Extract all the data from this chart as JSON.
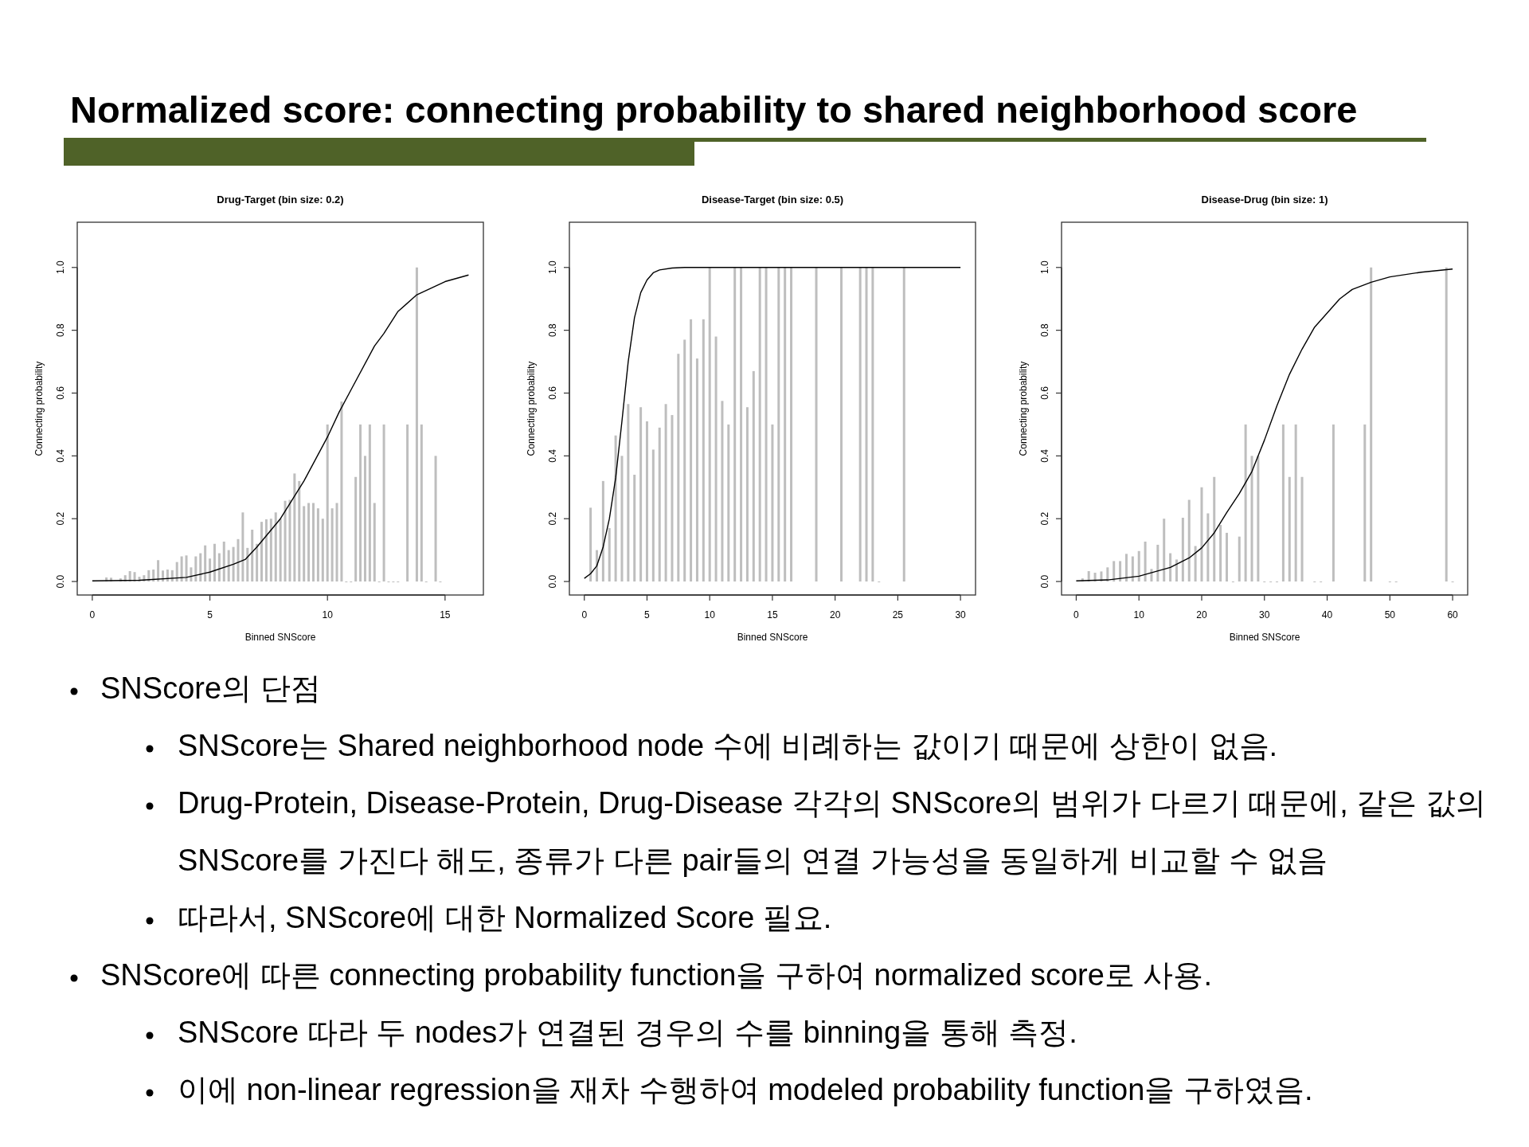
{
  "chart_data": [
    {
      "type": "other",
      "title": "Normalized score: connecting probability to shared neighborhood score"
    },
    {
      "type": "bar",
      "title": "Drug-Target (bin size: 0.2)",
      "xlabel": "Binned SNScore",
      "ylabel": "Connecting probability",
      "xlim": [
        -0.64,
        16.63
      ],
      "ylim": [
        -0.043,
        1.144
      ],
      "xticks": [
        0,
        5,
        10,
        15
      ],
      "yticks": [
        {
          "value": 0,
          "label": "0.0"
        },
        {
          "value": 0.2,
          "label": "0.2"
        },
        {
          "value": 0.4,
          "label": "0.4"
        },
        {
          "value": 0.6,
          "label": "0.6"
        },
        {
          "value": 0.8,
          "label": "0.8"
        },
        {
          "value": 1,
          "label": "1.0"
        }
      ],
      "series": [
        {
          "type": "bar",
          "color": "#bebebe",
          "x": [
            0.6,
            0.8,
            1.2,
            1.4,
            1.6,
            1.8,
            2.0,
            2.2,
            2.4,
            2.6,
            2.8,
            3.0,
            3.2,
            3.4,
            3.6,
            3.8,
            4.0,
            4.2,
            4.4,
            4.6,
            4.8,
            5.0,
            5.2,
            5.4,
            5.6,
            5.8,
            6.0,
            6.2,
            6.4,
            6.6,
            6.8,
            7.0,
            7.2,
            7.4,
            7.6,
            7.8,
            8.0,
            8.2,
            8.4,
            8.6,
            8.8,
            9.0,
            9.2,
            9.4,
            9.6,
            9.8,
            10.0,
            10.2,
            10.4,
            10.6,
            10.8,
            11.0,
            11.2,
            11.4,
            11.6,
            11.8,
            12.0,
            12.2,
            12.4,
            12.6,
            12.8,
            13.0,
            13.4,
            13.8,
            14.0,
            14.2,
            14.6,
            14.8
          ],
          "values": [
            0.013,
            0.012,
            0.01,
            0.02,
            0.033,
            0.03,
            0.015,
            0.02,
            0.036,
            0.038,
            0.068,
            0.035,
            0.038,
            0.036,
            0.062,
            0.08,
            0.083,
            0.045,
            0.08,
            0.09,
            0.115,
            0.073,
            0.12,
            0.09,
            0.127,
            0.1,
            0.11,
            0.135,
            0.22,
            0.107,
            0.165,
            0.12,
            0.19,
            0.198,
            0.2,
            0.22,
            0.2,
            0.257,
            0.26,
            0.344,
            0.32,
            0.24,
            0.25,
            0.25,
            0.233,
            0.2,
            0.5,
            0.233,
            0.25,
            0.573,
            0,
            0,
            0.333,
            0.5,
            0.4,
            0.5,
            0.25,
            0,
            0.5,
            0,
            0,
            0,
            0.5,
            1.0,
            0.5,
            0,
            0.4,
            0
          ]
        },
        {
          "type": "line",
          "color": "#000000",
          "x": [
            0,
            2,
            4,
            5,
            6,
            6.5,
            7,
            8,
            9,
            10,
            10.5,
            11,
            12,
            12.4,
            13,
            13.8,
            15,
            16
          ],
          "values": [
            0.002,
            0.004,
            0.013,
            0.03,
            0.055,
            0.07,
            0.11,
            0.2,
            0.32,
            0.46,
            0.54,
            0.61,
            0.75,
            0.79,
            0.86,
            0.913,
            0.955,
            0.976
          ]
        }
      ]
    },
    {
      "type": "bar",
      "title": "Disease-Target (bin size: 0.5)",
      "xlabel": "Binned SNScore",
      "ylabel": "Connecting probability",
      "xlim": [
        -1.19,
        31.2
      ],
      "ylim": [
        -0.043,
        1.144
      ],
      "xticks": [
        0,
        5,
        10,
        15,
        20,
        25,
        30
      ],
      "yticks": [
        {
          "value": 0,
          "label": "0.0"
        },
        {
          "value": 0.2,
          "label": "0.2"
        },
        {
          "value": 0.4,
          "label": "0.4"
        },
        {
          "value": 0.6,
          "label": "0.6"
        },
        {
          "value": 0.8,
          "label": "0.8"
        },
        {
          "value": 1,
          "label": "1.0"
        }
      ],
      "series": [
        {
          "type": "bar",
          "color": "#bebebe",
          "x": [
            0.5,
            1.0,
            1.5,
            2.0,
            2.5,
            3.0,
            3.5,
            4.0,
            4.5,
            5.0,
            5.5,
            6.0,
            6.5,
            7.0,
            7.5,
            8.0,
            8.5,
            9.0,
            9.5,
            10.0,
            10.5,
            11.0,
            11.5,
            12.0,
            12.5,
            13.0,
            13.5,
            14.0,
            14.5,
            15.0,
            15.5,
            16.0,
            16.5,
            18.5,
            20.5,
            22.0,
            22.5,
            23.0,
            23.5,
            25.5
          ],
          "values": [
            0.235,
            0.1,
            0.32,
            0.17,
            0.465,
            0.4,
            0.565,
            0.34,
            0.555,
            0.51,
            0.42,
            0.49,
            0.565,
            0.53,
            0.725,
            0.77,
            0.835,
            0.71,
            0.835,
            1.0,
            0.78,
            0.575,
            0.5,
            1.0,
            1.0,
            0.555,
            0.67,
            1.0,
            1.0,
            0.5,
            1.0,
            1.0,
            1.0,
            1.0,
            1.0,
            1.0,
            1.0,
            1.0,
            0,
            1.0
          ]
        },
        {
          "type": "line",
          "color": "#000000",
          "x": [
            0,
            0.5,
            1,
            1.5,
            2,
            2.5,
            3,
            3.5,
            4,
            4.5,
            5,
            5.5,
            6,
            7,
            8,
            30
          ],
          "values": [
            0.01,
            0.025,
            0.05,
            0.11,
            0.2,
            0.33,
            0.51,
            0.7,
            0.84,
            0.92,
            0.96,
            0.983,
            0.992,
            0.998,
            1.0,
            1.0
          ]
        }
      ]
    },
    {
      "type": "bar",
      "title": "Disease-Drug (bin size: 1)",
      "xlabel": "Binned SNScore",
      "ylabel": "Connecting probability",
      "xlim": [
        -2.34,
        62.4
      ],
      "ylim": [
        -0.043,
        1.144
      ],
      "xticks": [
        0,
        10,
        20,
        30,
        40,
        50,
        60
      ],
      "yticks": [
        {
          "value": 0,
          "label": "0.0"
        },
        {
          "value": 0.2,
          "label": "0.2"
        },
        {
          "value": 0.4,
          "label": "0.4"
        },
        {
          "value": 0.6,
          "label": "0.6"
        },
        {
          "value": 0.8,
          "label": "0.8"
        },
        {
          "value": 1,
          "label": "1.0"
        }
      ],
      "series": [
        {
          "type": "bar",
          "color": "#bebebe",
          "x": [
            1,
            2,
            3,
            4,
            5,
            6,
            7,
            8,
            9,
            10,
            11,
            12,
            13,
            14,
            15,
            16,
            17,
            18,
            19,
            20,
            21,
            22,
            23,
            24,
            25,
            26,
            27,
            28,
            29,
            30,
            31,
            32,
            33,
            34,
            35,
            36,
            38,
            39,
            41,
            46,
            47,
            50,
            51,
            59,
            60
          ],
          "values": [
            0.01,
            0.033,
            0.028,
            0.032,
            0.045,
            0.065,
            0.065,
            0.088,
            0.08,
            0.097,
            0.127,
            0.04,
            0.117,
            0.2,
            0.09,
            0.07,
            0.203,
            0.26,
            0.113,
            0.3,
            0.217,
            0.333,
            0.18,
            0.155,
            0,
            0.143,
            0.5,
            0.4,
            0.4,
            0,
            0,
            0,
            0.5,
            0.333,
            0.5,
            0.333,
            0,
            0,
            0.5,
            0.5,
            1.0,
            0,
            0,
            1.0,
            0
          ]
        },
        {
          "type": "line",
          "color": "#000000",
          "x": [
            0,
            5,
            10,
            15,
            18,
            20,
            22,
            24,
            26,
            28,
            29,
            30,
            32,
            34,
            36,
            38,
            40,
            42,
            44,
            47,
            50,
            55,
            60
          ],
          "values": [
            0.002,
            0.005,
            0.017,
            0.045,
            0.075,
            0.107,
            0.155,
            0.22,
            0.28,
            0.35,
            0.4,
            0.45,
            0.56,
            0.66,
            0.74,
            0.81,
            0.855,
            0.9,
            0.93,
            0.953,
            0.97,
            0.985,
            0.995
          ]
        }
      ]
    },
    {
      "type": "other",
      "annotations": [
        "SNScore의 단점",
        "SNScore는 Shared neighborhood node 수에 비례하는 값이기 때문에 상한이 없음.",
        "Drug-Protein, Disease-Protein, Drug-Disease 각각의 SNScore의 범위가 다르기 때문에, 같은 값의 SNScore를 가진다 해도, 종류가 다른 pair들의 연결 가능성을 동일하게 비교할 수 없음",
        "따라서, SNScore에 대한 Normalized Score 필요.",
        "SNScore에 따른 connecting probability function을 구하여 normalized score로 사용.",
        "SNScore 따라 두 nodes가 연결된 경우의 수를 binning을 통해 측정.",
        "이에 non-linear regression을 재차 수행하여 modeled probability function을 구하였음."
      ]
    }
  ]
}
